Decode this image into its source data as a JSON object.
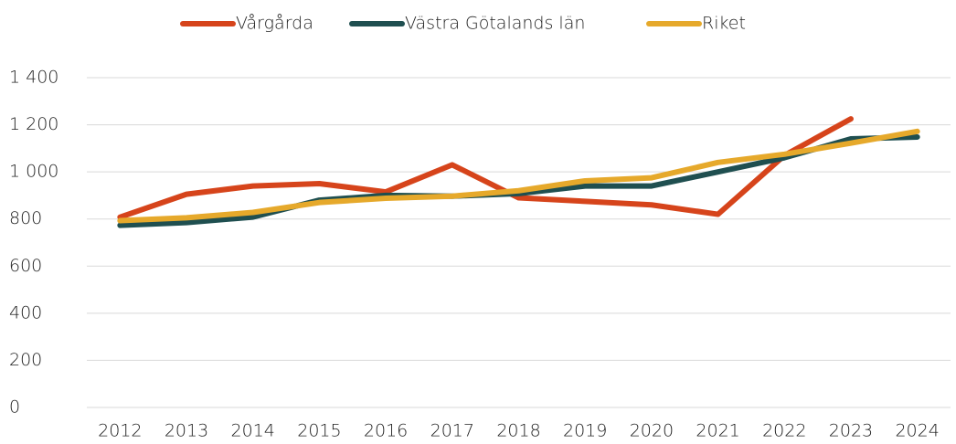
{
  "chart_data": {
    "type": "line",
    "categories": [
      "2012",
      "2013",
      "2014",
      "2015",
      "2016",
      "2017",
      "2018",
      "2019",
      "2020",
      "2021",
      "2022",
      "2023",
      "2024"
    ],
    "series": [
      {
        "name": "Vårgårda",
        "color": "#d6441b",
        "values": [
          808,
          905,
          940,
          950,
          915,
          1030,
          890,
          875,
          860,
          820,
          1070,
          1225,
          null
        ]
      },
      {
        "name": "Västra Götalands län",
        "color": "#1f4f50",
        "values": [
          773,
          785,
          808,
          880,
          900,
          897,
          908,
          940,
          940,
          1000,
          1060,
          1140,
          1148
        ]
      },
      {
        "name": "Riket",
        "color": "#e6a92b",
        "values": [
          793,
          805,
          828,
          870,
          888,
          897,
          920,
          962,
          975,
          1040,
          1075,
          1122,
          1172
        ]
      }
    ],
    "ylim": [
      0,
      1400
    ],
    "yticks": [
      0,
      200,
      400,
      600,
      800,
      {
        "value": 1000,
        "label": "1 000"
      },
      {
        "value": 1200,
        "label": "1 200"
      },
      {
        "value": 1400,
        "label": "1 400"
      }
    ],
    "grid": true,
    "legend": "top"
  }
}
